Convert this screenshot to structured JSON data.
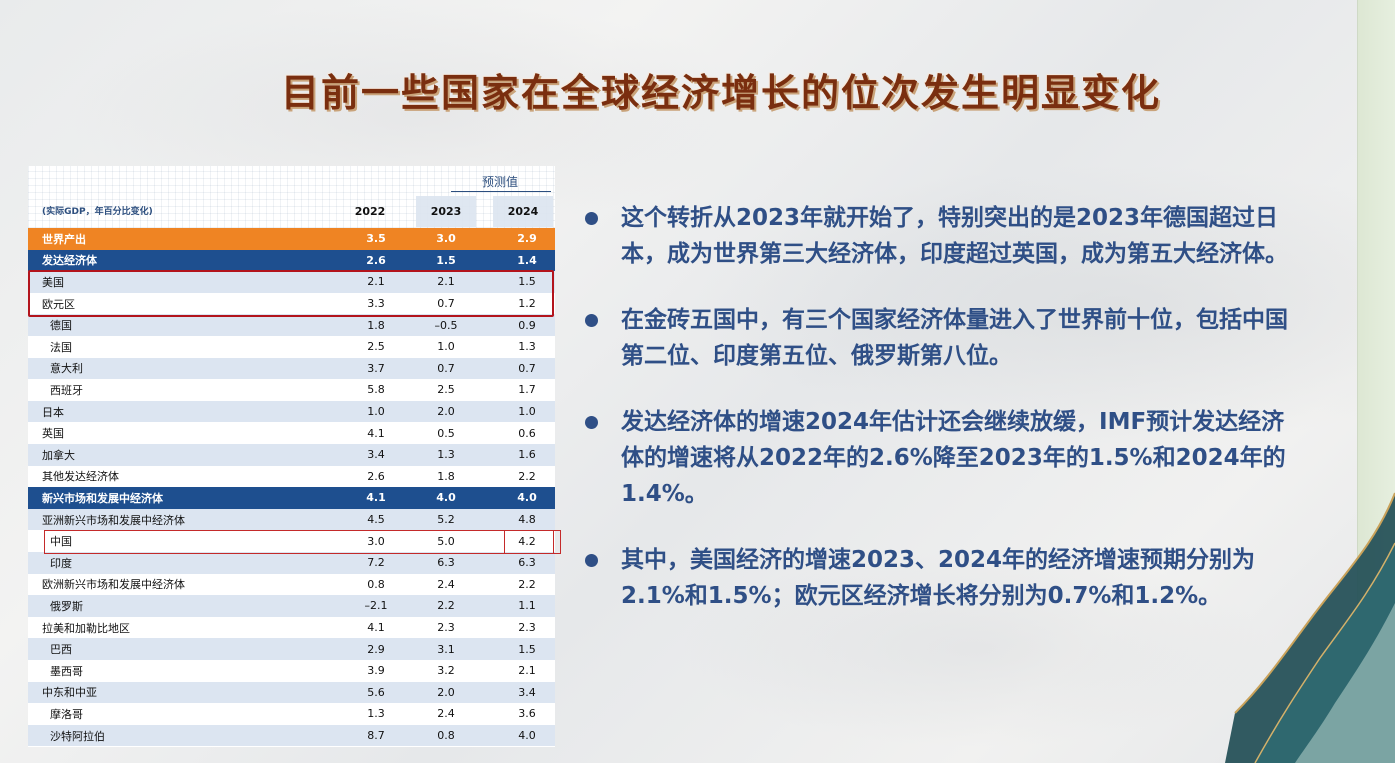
{
  "title": "目前一些国家在全球经济增长的位次发生明显变化",
  "table": {
    "forecast_label": "预测值",
    "note": "(实际GDP，年百分比变化)",
    "years": [
      "2022",
      "2023",
      "2024"
    ],
    "rows": [
      {
        "name": "世界产出",
        "v": [
          "3.5",
          "3.0",
          "2.9"
        ],
        "style": "world"
      },
      {
        "name": "发达经济体",
        "v": [
          "2.6",
          "1.5",
          "1.4"
        ],
        "style": "blue"
      },
      {
        "name": "美国",
        "v": [
          "2.1",
          "2.1",
          "1.5"
        ],
        "style": "odd"
      },
      {
        "name": "欧元区",
        "v": [
          "3.3",
          "0.7",
          "1.2"
        ],
        "style": "even"
      },
      {
        "name": "德国",
        "v": [
          "1.8",
          "–0.5",
          "0.9"
        ],
        "style": "odd",
        "indent": true
      },
      {
        "name": "法国",
        "v": [
          "2.5",
          "1.0",
          "1.3"
        ],
        "style": "even",
        "indent": true
      },
      {
        "name": "意大利",
        "v": [
          "3.7",
          "0.7",
          "0.7"
        ],
        "style": "odd",
        "indent": true
      },
      {
        "name": "西班牙",
        "v": [
          "5.8",
          "2.5",
          "1.7"
        ],
        "style": "even",
        "indent": true
      },
      {
        "name": "日本",
        "v": [
          "1.0",
          "2.0",
          "1.0"
        ],
        "style": "odd"
      },
      {
        "name": "英国",
        "v": [
          "4.1",
          "0.5",
          "0.6"
        ],
        "style": "even"
      },
      {
        "name": "加拿大",
        "v": [
          "3.4",
          "1.3",
          "1.6"
        ],
        "style": "odd"
      },
      {
        "name": "其他发达经济体",
        "v": [
          "2.6",
          "1.8",
          "2.2"
        ],
        "style": "even"
      },
      {
        "name": "新兴市场和发展中经济体",
        "v": [
          "4.1",
          "4.0",
          "4.0"
        ],
        "style": "blue"
      },
      {
        "name": "亚洲新兴市场和发展中经济体",
        "v": [
          "4.5",
          "5.2",
          "4.8"
        ],
        "style": "odd"
      },
      {
        "name": "中国",
        "v": [
          "3.0",
          "5.0",
          "4.2"
        ],
        "style": "even",
        "indent": true
      },
      {
        "name": "印度",
        "v": [
          "7.2",
          "6.3",
          "6.3"
        ],
        "style": "odd",
        "indent": true
      },
      {
        "name": "欧洲新兴市场和发展中经济体",
        "v": [
          "0.8",
          "2.4",
          "2.2"
        ],
        "style": "even"
      },
      {
        "name": "俄罗斯",
        "v": [
          "–2.1",
          "2.2",
          "1.1"
        ],
        "style": "odd",
        "indent": true
      },
      {
        "name": "拉美和加勒比地区",
        "v": [
          "4.1",
          "2.3",
          "2.3"
        ],
        "style": "even"
      },
      {
        "name": "巴西",
        "v": [
          "2.9",
          "3.1",
          "1.5"
        ],
        "style": "odd",
        "indent": true
      },
      {
        "name": "墨西哥",
        "v": [
          "3.9",
          "3.2",
          "2.1"
        ],
        "style": "even",
        "indent": true
      },
      {
        "name": "中东和中亚",
        "v": [
          "5.6",
          "2.0",
          "3.4"
        ],
        "style": "odd"
      },
      {
        "name": "摩洛哥",
        "v": [
          "1.3",
          "2.4",
          "3.6"
        ],
        "style": "even",
        "indent": true
      },
      {
        "name": "沙特阿拉伯",
        "v": [
          "8.7",
          "0.8",
          "4.0"
        ],
        "style": "odd",
        "indent": true
      }
    ]
  },
  "bullets": [
    "这个转折从2023年就开始了，特别突出的是2023年德国超过日本，成为世界第三大经济体，印度超过英国，成为第五大经济体。",
    "在金砖五国中，有三个国家经济体量进入了世界前十位，包括中国第二位、印度第五位、俄罗斯第八位。",
    "发达经济体的增速2024年估计还会继续放缓，IMF预计发达经济体的增速将从2022年的2.6%降至2023年的1.5%和2024年的1.4%。",
    "其中，美国经济的增速2023、2024年的经济增速预期分别为2.1%和1.5%；欧元区经济增长将分别为0.7%和1.2%。"
  ],
  "colors": {
    "title": "#7a2e0f",
    "bullet_text": "#2f4f86",
    "world_row": "#ef8423",
    "group_row": "#1e4f8f",
    "highlight_box": "#b3141c"
  }
}
